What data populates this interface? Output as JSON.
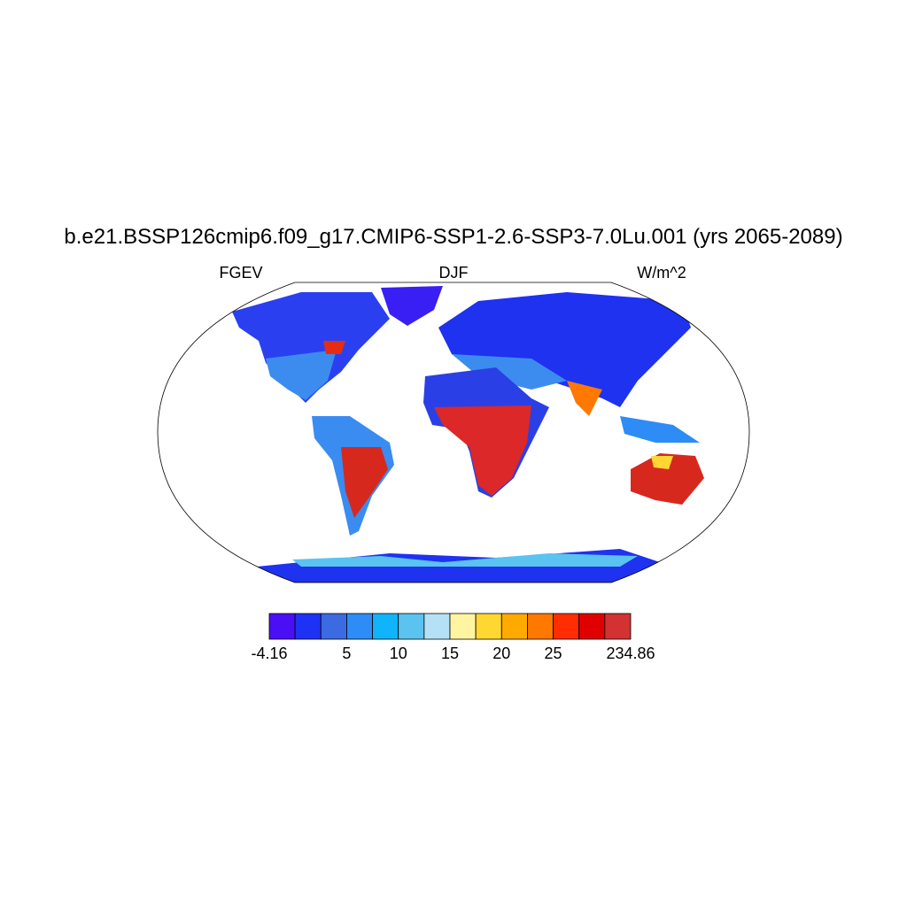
{
  "title": "b.e21.BSSP126cmip6.f09_g17.CMIP6-SSP1-2.6-SSP3-7.0Lu.001 (yrs 2065-2089)",
  "left_label": "FGEV",
  "center_label": "DJF",
  "right_label": "W/m^2",
  "colorbar": {
    "colors": [
      "#4b0ff5",
      "#1e32f5",
      "#3c6ae0",
      "#2d8cf5",
      "#0fb4fa",
      "#5ac3f0",
      "#b4e1f5",
      "#fff5a0",
      "#ffd732",
      "#ffaa00",
      "#ff7800",
      "#ff2d00",
      "#e10000",
      "#d23232"
    ],
    "labels": [
      -4.16,
      5,
      10,
      15,
      20,
      25,
      234.86
    ]
  }
}
